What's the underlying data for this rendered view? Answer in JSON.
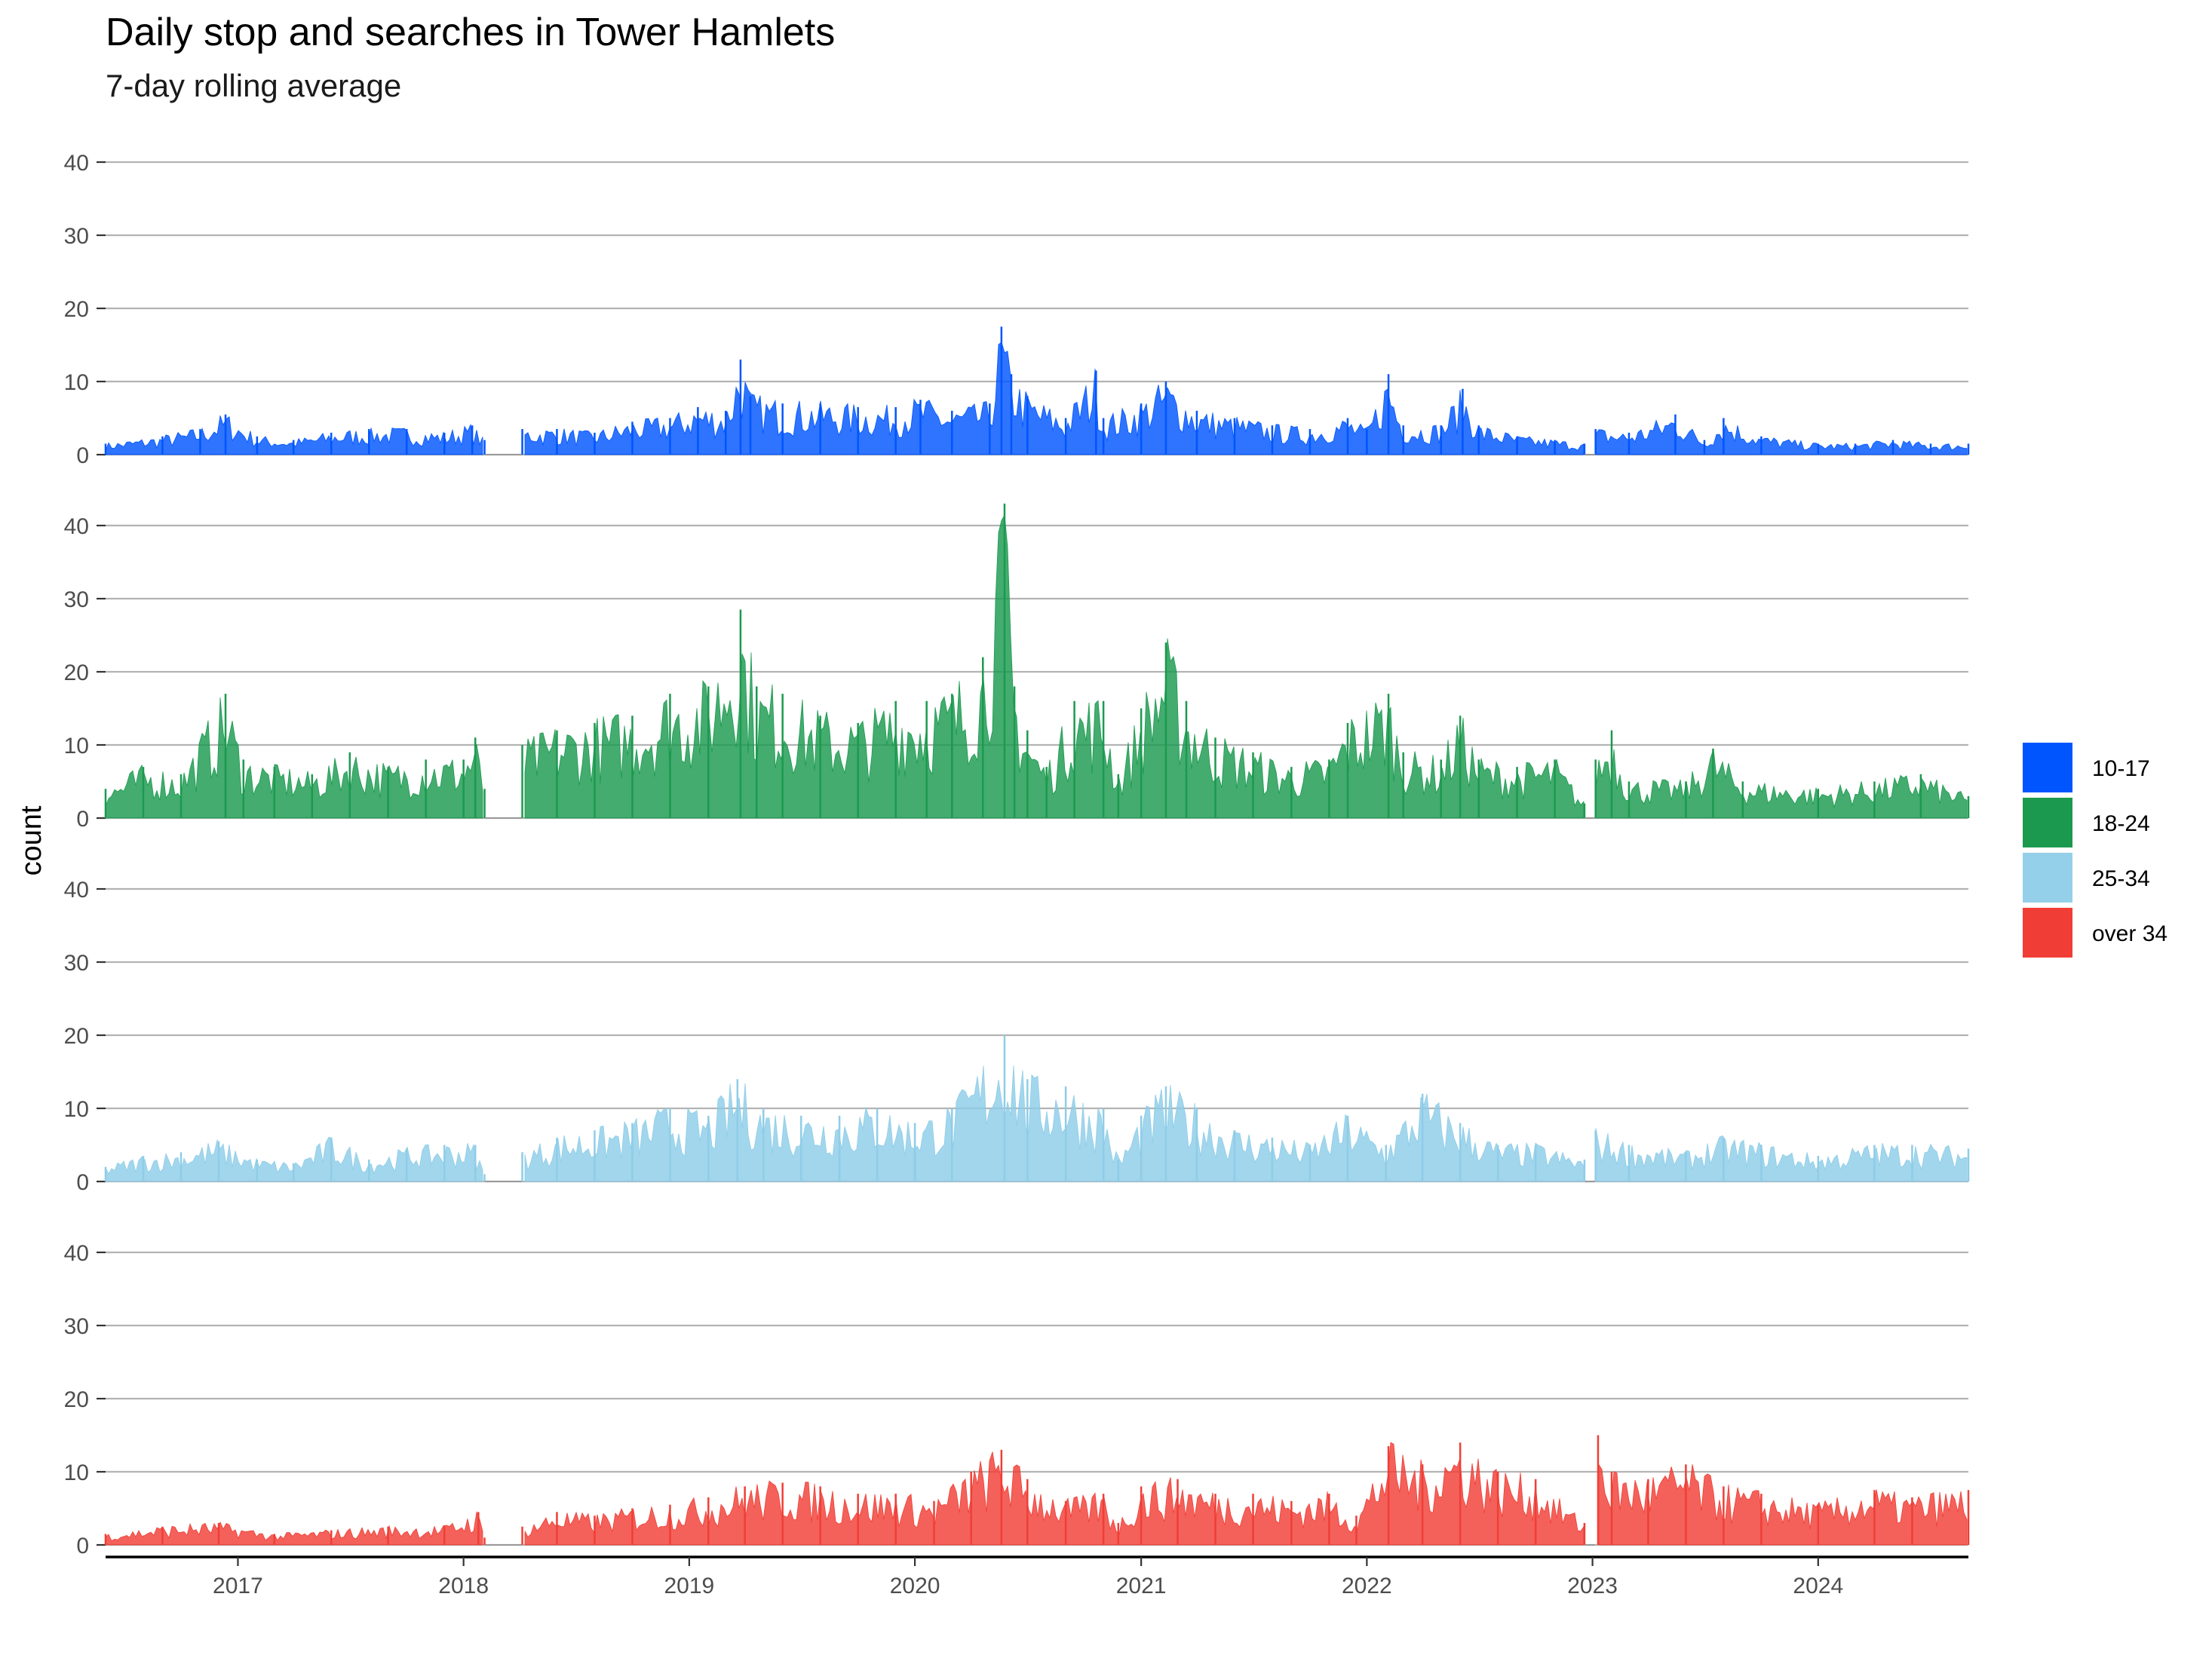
{
  "chart_data": {
    "type": "area",
    "title": "Daily stop and searches in Tower Hamlets",
    "subtitle": "7-day rolling average",
    "ylabel": "count",
    "xlabel": "",
    "x_tick_labels": [
      "2017",
      "2018",
      "2019",
      "2020",
      "2021",
      "2022",
      "2023",
      "2024"
    ],
    "y_tick_labels": [
      "0",
      "10",
      "20",
      "30",
      "40"
    ],
    "ylim": [
      0,
      40
    ],
    "xlim": [
      "2016-06-01",
      "2024-08-31"
    ],
    "grid": "horizontal major",
    "facets": "stacked vertically, shared x axis",
    "legend_position": "right",
    "missing_periods": [
      [
        "2018-02-05",
        "2018-04-05"
      ],
      [
        "2022-12-20",
        "2023-01-05"
      ]
    ],
    "series": [
      {
        "name": "10-17",
        "color": "#0055ff",
        "points": [
          [
            "2016-06-01",
            1.5
          ],
          [
            "2016-09-01",
            2.5
          ],
          [
            "2016-11-01",
            3.5
          ],
          [
            "2016-12-12",
            5.5
          ],
          [
            "2017-02-01",
            2.5
          ],
          [
            "2017-04-01",
            2
          ],
          [
            "2017-06-01",
            3
          ],
          [
            "2017-08-01",
            3.5
          ],
          [
            "2017-10-01",
            3.5
          ],
          [
            "2017-12-01",
            3
          ],
          [
            "2018-01-15",
            4
          ],
          [
            "2018-02-04",
            2
          ],
          [
            "2018-04-06",
            3.5
          ],
          [
            "2018-06-01",
            3.5
          ],
          [
            "2018-08-01",
            3
          ],
          [
            "2018-10-01",
            4.5
          ],
          [
            "2018-12-01",
            5
          ],
          [
            "2019-01-15",
            6.5
          ],
          [
            "2019-03-01",
            6
          ],
          [
            "2019-03-25",
            13
          ],
          [
            "2019-04-10",
            8
          ],
          [
            "2019-06-01",
            7
          ],
          [
            "2019-08-01",
            7
          ],
          [
            "2019-10-01",
            6.5
          ],
          [
            "2019-12-01",
            6.5
          ],
          [
            "2020-01-10",
            7.5
          ],
          [
            "2020-03-01",
            6
          ],
          [
            "2020-05-01",
            7
          ],
          [
            "2020-05-20",
            17.5
          ],
          [
            "2020-06-05",
            11
          ],
          [
            "2020-07-01",
            8
          ],
          [
            "2020-09-01",
            5
          ],
          [
            "2020-10-20",
            11.5
          ],
          [
            "2020-11-01",
            5
          ],
          [
            "2021-01-01",
            7
          ],
          [
            "2021-02-10",
            10
          ],
          [
            "2021-04-01",
            6
          ],
          [
            "2021-06-01",
            5
          ],
          [
            "2021-08-01",
            4
          ],
          [
            "2021-10-01",
            3.5
          ],
          [
            "2021-12-01",
            5
          ],
          [
            "2022-01-01",
            3.5
          ],
          [
            "2022-02-05",
            11
          ],
          [
            "2022-03-01",
            4
          ],
          [
            "2022-05-01",
            4
          ],
          [
            "2022-06-05",
            9
          ],
          [
            "2022-07-01",
            4
          ],
          [
            "2022-09-01",
            2.5
          ],
          [
            "2022-11-01",
            2
          ],
          [
            "2022-12-19",
            1.5
          ],
          [
            "2023-01-06",
            3.5
          ],
          [
            "2023-03-01",
            3
          ],
          [
            "2023-05-15",
            5.5
          ],
          [
            "2023-07-01",
            2
          ],
          [
            "2023-08-01",
            5
          ],
          [
            "2023-10-01",
            2.5
          ],
          [
            "2024-01-01",
            1.5
          ],
          [
            "2024-03-01",
            1.5
          ],
          [
            "2024-05-01",
            2
          ],
          [
            "2024-07-01",
            1.5
          ],
          [
            "2024-08-31",
            1.5
          ]
        ]
      },
      {
        "name": "18-24",
        "color": "#1b9a4f",
        "points": [
          [
            "2016-06-01",
            4
          ],
          [
            "2016-08-01",
            7
          ],
          [
            "2016-10-01",
            6
          ],
          [
            "2016-12-12",
            17
          ],
          [
            "2017-01-10",
            8
          ],
          [
            "2017-03-01",
            7
          ],
          [
            "2017-05-01",
            6
          ],
          [
            "2017-07-01",
            9
          ],
          [
            "2017-09-01",
            7
          ],
          [
            "2017-11-01",
            8
          ],
          [
            "2018-01-01",
            8
          ],
          [
            "2018-01-20",
            11
          ],
          [
            "2018-02-04",
            4
          ],
          [
            "2018-04-06",
            10
          ],
          [
            "2018-06-01",
            12
          ],
          [
            "2018-08-01",
            13
          ],
          [
            "2018-10-01",
            14
          ],
          [
            "2018-12-01",
            17
          ],
          [
            "2019-02-01",
            18
          ],
          [
            "2019-03-25",
            28.5
          ],
          [
            "2019-04-20",
            18
          ],
          [
            "2019-06-01",
            17
          ],
          [
            "2019-08-01",
            14
          ],
          [
            "2019-10-01",
            13
          ],
          [
            "2019-12-01",
            16
          ],
          [
            "2020-01-20",
            16
          ],
          [
            "2020-03-01",
            17
          ],
          [
            "2020-04-20",
            22
          ],
          [
            "2020-05-25",
            43
          ],
          [
            "2020-06-10",
            18
          ],
          [
            "2020-07-01",
            12
          ],
          [
            "2020-08-01",
            7
          ],
          [
            "2020-09-15",
            16
          ],
          [
            "2020-11-01",
            16
          ],
          [
            "2020-11-25",
            6
          ],
          [
            "2021-01-01",
            15
          ],
          [
            "2021-02-10",
            24
          ],
          [
            "2021-03-15",
            16
          ],
          [
            "2021-05-01",
            11
          ],
          [
            "2021-07-01",
            9
          ],
          [
            "2021-09-01",
            7
          ],
          [
            "2021-11-01",
            8
          ],
          [
            "2021-12-01",
            13
          ],
          [
            "2022-02-05",
            17
          ],
          [
            "2022-03-01",
            9
          ],
          [
            "2022-05-01",
            8
          ],
          [
            "2022-06-01",
            14
          ],
          [
            "2022-07-01",
            8
          ],
          [
            "2022-09-01",
            7
          ],
          [
            "2022-11-01",
            8
          ],
          [
            "2022-12-19",
            2
          ],
          [
            "2023-01-06",
            8
          ],
          [
            "2023-02-01",
            12
          ],
          [
            "2023-03-01",
            5
          ],
          [
            "2023-06-01",
            5
          ],
          [
            "2023-07-15",
            9.5
          ],
          [
            "2023-09-01",
            5
          ],
          [
            "2024-01-01",
            4
          ],
          [
            "2024-04-01",
            5
          ],
          [
            "2024-06-15",
            6
          ],
          [
            "2024-08-31",
            3
          ]
        ]
      },
      {
        "name": "25-34",
        "color": "#8ecde8",
        "points": [
          [
            "2016-06-01",
            2
          ],
          [
            "2016-08-01",
            3.5
          ],
          [
            "2016-10-01",
            4
          ],
          [
            "2016-12-01",
            5.5
          ],
          [
            "2017-02-01",
            3
          ],
          [
            "2017-04-01",
            2.5
          ],
          [
            "2017-06-01",
            6
          ],
          [
            "2017-08-01",
            3
          ],
          [
            "2017-10-01",
            4.5
          ],
          [
            "2017-12-01",
            5
          ],
          [
            "2018-01-20",
            5
          ],
          [
            "2018-02-04",
            1
          ],
          [
            "2018-04-06",
            4
          ],
          [
            "2018-06-01",
            6
          ],
          [
            "2018-08-01",
            7
          ],
          [
            "2018-10-01",
            8
          ],
          [
            "2018-12-01",
            10
          ],
          [
            "2019-02-01",
            9
          ],
          [
            "2019-03-20",
            14
          ],
          [
            "2019-05-01",
            10
          ],
          [
            "2019-07-01",
            9
          ],
          [
            "2019-09-01",
            9
          ],
          [
            "2019-11-01",
            10
          ],
          [
            "2020-01-01",
            8
          ],
          [
            "2020-03-01",
            10
          ],
          [
            "2020-05-25",
            20
          ],
          [
            "2020-07-01",
            14
          ],
          [
            "2020-09-01",
            13
          ],
          [
            "2020-11-01",
            10
          ],
          [
            "2020-11-25",
            3
          ],
          [
            "2021-01-01",
            9
          ],
          [
            "2021-02-10",
            13
          ],
          [
            "2021-04-01",
            10
          ],
          [
            "2021-06-01",
            7
          ],
          [
            "2021-08-01",
            6
          ],
          [
            "2021-10-01",
            5
          ],
          [
            "2021-12-01",
            9
          ],
          [
            "2022-02-01",
            5
          ],
          [
            "2022-04-01",
            12
          ],
          [
            "2022-06-01",
            8
          ],
          [
            "2022-08-01",
            5
          ],
          [
            "2022-10-01",
            5
          ],
          [
            "2022-12-19",
            3
          ],
          [
            "2023-01-06",
            7
          ],
          [
            "2023-03-01",
            5
          ],
          [
            "2023-06-01",
            4
          ],
          [
            "2023-08-01",
            6
          ],
          [
            "2023-10-01",
            5
          ],
          [
            "2024-01-01",
            3.5
          ],
          [
            "2024-04-01",
            5
          ],
          [
            "2024-06-01",
            5
          ],
          [
            "2024-08-31",
            4.5
          ]
        ]
      },
      {
        "name": "over 34",
        "color": "#f03e36",
        "points": [
          [
            "2016-06-01",
            1.5
          ],
          [
            "2016-09-01",
            2.5
          ],
          [
            "2016-12-01",
            3
          ],
          [
            "2017-03-01",
            1.5
          ],
          [
            "2017-06-01",
            2
          ],
          [
            "2017-09-01",
            2.5
          ],
          [
            "2017-12-01",
            2.5
          ],
          [
            "2018-01-25",
            4.5
          ],
          [
            "2018-02-04",
            1
          ],
          [
            "2018-04-06",
            2.5
          ],
          [
            "2018-06-01",
            4.5
          ],
          [
            "2018-08-01",
            4
          ],
          [
            "2018-10-01",
            5
          ],
          [
            "2018-12-01",
            5.5
          ],
          [
            "2019-02-01",
            6.5
          ],
          [
            "2019-04-01",
            8
          ],
          [
            "2019-06-01",
            8.5
          ],
          [
            "2019-08-01",
            8
          ],
          [
            "2019-10-01",
            7
          ],
          [
            "2019-12-01",
            7
          ],
          [
            "2020-02-01",
            6
          ],
          [
            "2020-04-01",
            10
          ],
          [
            "2020-05-20",
            13
          ],
          [
            "2020-07-01",
            9
          ],
          [
            "2020-09-01",
            6
          ],
          [
            "2020-11-01",
            7
          ],
          [
            "2020-11-25",
            3
          ],
          [
            "2021-01-01",
            8
          ],
          [
            "2021-03-01",
            9
          ],
          [
            "2021-05-01",
            7
          ],
          [
            "2021-07-01",
            7
          ],
          [
            "2021-09-01",
            6
          ],
          [
            "2021-11-01",
            7
          ],
          [
            "2021-12-15",
            4
          ],
          [
            "2022-02-05",
            13.5
          ],
          [
            "2022-04-01",
            11
          ],
          [
            "2022-06-01",
            14
          ],
          [
            "2022-08-01",
            10
          ],
          [
            "2022-10-01",
            9
          ],
          [
            "2022-12-19",
            3
          ],
          [
            "2023-01-10",
            15
          ],
          [
            "2023-02-01",
            10
          ],
          [
            "2023-04-01",
            9
          ],
          [
            "2023-06-01",
            11
          ],
          [
            "2023-08-01",
            8
          ],
          [
            "2023-10-01",
            7
          ],
          [
            "2024-01-01",
            5.5
          ],
          [
            "2024-04-01",
            7.5
          ],
          [
            "2024-06-01",
            6.5
          ],
          [
            "2024-08-31",
            7.5
          ]
        ]
      }
    ]
  }
}
